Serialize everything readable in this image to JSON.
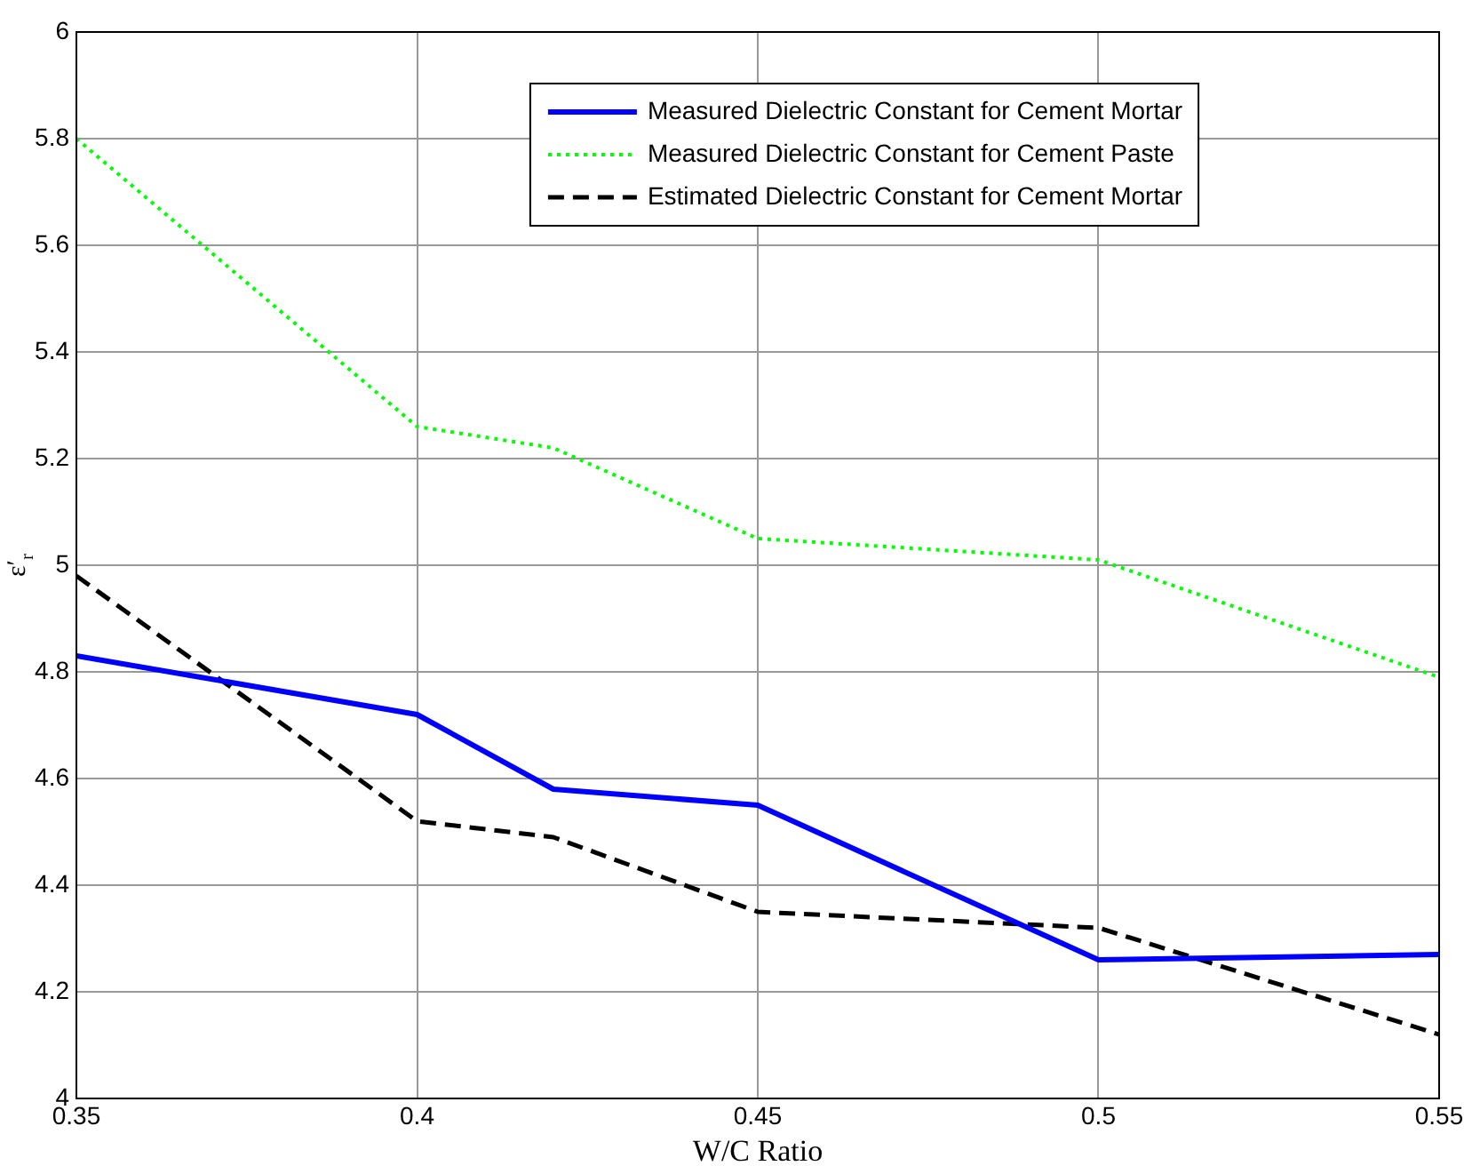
{
  "chart_data": {
    "type": "line",
    "xlabel": "W/C Ratio",
    "ylabel": "ε′$_{r}$",
    "x": [
      0.35,
      0.4,
      0.42,
      0.45,
      0.5,
      0.55
    ],
    "series": [
      {
        "name": "Measured Dielectric Constant for Cement Mortar",
        "color": "#0000ff",
        "line_style": "solid",
        "values": [
          4.83,
          4.72,
          4.58,
          4.55,
          4.26,
          4.27
        ]
      },
      {
        "name": "Measured Dielectric Constant for Cement Paste",
        "color": "#00ff00",
        "line_style": "dotted",
        "values": [
          5.8,
          5.26,
          5.22,
          5.05,
          5.01,
          4.79
        ]
      },
      {
        "name": "Estimated Dielectric Constant for Cement Mortar",
        "color": "#000000",
        "line_style": "dashed",
        "values": [
          4.98,
          4.52,
          4.49,
          4.35,
          4.32,
          4.12
        ]
      }
    ],
    "xlim": [
      0.35,
      0.55
    ],
    "xticks": [
      0.35,
      0.4,
      0.45,
      0.5,
      0.55
    ],
    "ylim": [
      4,
      6
    ],
    "yticks": [
      4,
      4.2,
      4.4,
      4.6,
      4.8,
      5,
      5.2,
      5.4,
      5.6,
      5.8,
      6
    ],
    "grid": true,
    "legend": "top",
    "marker": "none"
  }
}
